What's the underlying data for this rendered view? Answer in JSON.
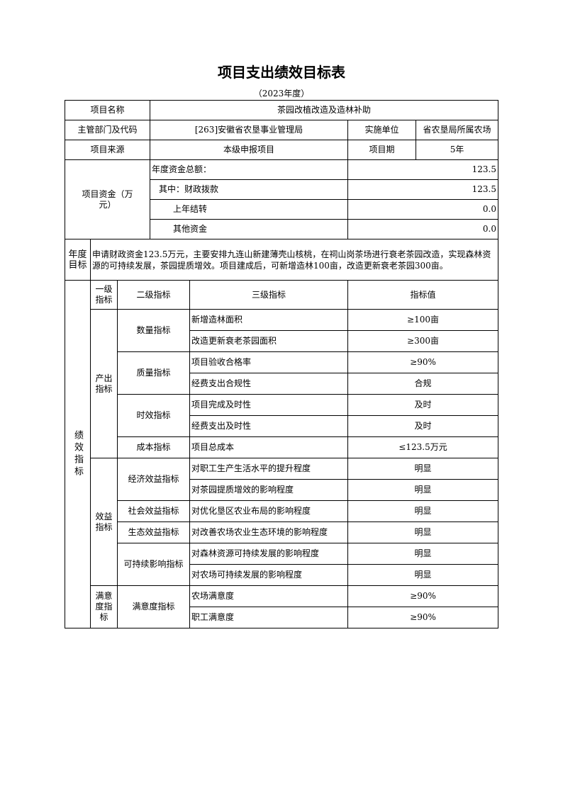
{
  "title": "项目支出绩效目标表",
  "year": "（2023年度）",
  "info": {
    "name_label": "项目名称",
    "name": "茶园改植改造及造林补助",
    "dept_label": "主管部门及代码",
    "dept": "[263]安徽省农垦事业管理局",
    "impl_label": "实施单位",
    "impl": "省农垦局所属农场",
    "source_label": "项目来源",
    "source": "本级申报项目",
    "period_label": "项目期",
    "period": "5年"
  },
  "funds": {
    "label": "项目资金（万元）",
    "rows": [
      {
        "label": "年度资金总额：",
        "value": "123.5"
      },
      {
        "label": "其中：财政拨款",
        "value": "123.5"
      },
      {
        "label": "上年结转",
        "value": "0.0"
      },
      {
        "label": "其他资金",
        "value": "0.0"
      }
    ]
  },
  "goal": {
    "label": "年度目标",
    "text": "申请财政资金123.5万元，主要安排九连山新建薄壳山核桃，在祠山岗茶场进行衰老茶园改造，实现森林资源的可持续发展，茶园提质增效。项目建成后，可新增造林100亩，改造更新衰老茶园300亩。"
  },
  "indicators": {
    "label": "绩效指标",
    "headers": [
      "一级指标",
      "二级指标",
      "三级指标",
      "指标值"
    ],
    "groups": [
      {
        "level1": "产出指标",
        "subs": [
          {
            "level2": "数量指标",
            "items": [
              [
                "新增造林面积",
                "≥100亩"
              ],
              [
                "改造更新衰老茶园面积",
                "≥300亩"
              ]
            ]
          },
          {
            "level2": "质量指标",
            "items": [
              [
                "项目验收合格率",
                "≥90%"
              ],
              [
                "经费支出合规性",
                "合规"
              ]
            ]
          },
          {
            "level2": "时效指标",
            "items": [
              [
                "项目完成及时性",
                "及时"
              ],
              [
                "经费支出及时性",
                "及时"
              ]
            ]
          },
          {
            "level2": "成本指标",
            "items": [
              [
                "项目总成本",
                "≤123.5万元"
              ]
            ]
          }
        ]
      },
      {
        "level1": "效益指标",
        "subs": [
          {
            "level2": "经济效益指标",
            "items": [
              [
                "对职工生产生活水平的提升程度",
                "明显"
              ],
              [
                "对茶园提质增效的影响程度",
                "明显"
              ]
            ]
          },
          {
            "level2": "社会效益指标",
            "items": [
              [
                "对优化垦区农业布局的影响程度",
                "明显"
              ]
            ]
          },
          {
            "level2": "生态效益指标",
            "items": [
              [
                "对改善农场农业生态环境的影响程度",
                "明显"
              ]
            ]
          },
          {
            "level2": "可持续影响指标",
            "items": [
              [
                "对森林资源可持续发展的影响程度",
                "明显"
              ],
              [
                "对农场可持续发展的影响程度",
                "明显"
              ]
            ]
          }
        ]
      },
      {
        "level1": "满意度指标",
        "subs": [
          {
            "level2": "满意度指标",
            "items": [
              [
                "农场满意度",
                "≥90%"
              ],
              [
                "职工满意度",
                "≥90%"
              ]
            ]
          }
        ]
      }
    ]
  }
}
